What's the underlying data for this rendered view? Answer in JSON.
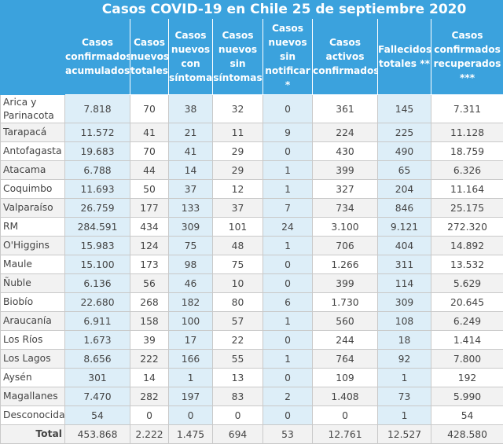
{
  "title": "Casos COVID-19 en Chile 25 de septiembre 2020",
  "headers": [
    "",
    "Casos confirmados acumulados",
    "Casos nuevos totales",
    "Casos nuevos con síntomas",
    "Casos nuevos sin síntomas",
    "Casos nuevos sin notificar *",
    "Casos activos confirmados",
    "Fallecidos totales **",
    "Casos confirmados recuperados ***"
  ],
  "rows": [
    [
      "Arica y Parinacota",
      "7.818",
      "70",
      "38",
      "32",
      "0",
      "361",
      "145",
      "7.311"
    ],
    [
      "Tarapacá",
      "11.572",
      "41",
      "21",
      "11",
      "9",
      "224",
      "225",
      "11.128"
    ],
    [
      "Antofagasta",
      "19.683",
      "70",
      "41",
      "29",
      "0",
      "430",
      "490",
      "18.759"
    ],
    [
      "Atacama",
      "6.788",
      "44",
      "14",
      "29",
      "1",
      "399",
      "65",
      "6.326"
    ],
    [
      "Coquimbo",
      "11.693",
      "50",
      "37",
      "12",
      "1",
      "327",
      "204",
      "11.164"
    ],
    [
      "Valparaíso",
      "26.759",
      "177",
      "133",
      "37",
      "7",
      "734",
      "846",
      "25.175"
    ],
    [
      "RM",
      "284.591",
      "434",
      "309",
      "101",
      "24",
      "3.100",
      "9.121",
      "272.320"
    ],
    [
      "O'Higgins",
      "15.983",
      "124",
      "75",
      "48",
      "1",
      "706",
      "404",
      "14.892"
    ],
    [
      "Maule",
      "15.100",
      "173",
      "98",
      "75",
      "0",
      "1.266",
      "311",
      "13.532"
    ],
    [
      "Ñuble",
      "6.136",
      "56",
      "46",
      "10",
      "0",
      "399",
      "114",
      "5.629"
    ],
    [
      "Biobío",
      "22.680",
      "268",
      "182",
      "80",
      "6",
      "1.730",
      "309",
      "20.645"
    ],
    [
      "Araucanía",
      "6.911",
      "158",
      "100",
      "57",
      "1",
      "560",
      "108",
      "6.249"
    ],
    [
      "Los Ríos",
      "1.673",
      "39",
      "17",
      "22",
      "0",
      "244",
      "18",
      "1.414"
    ],
    [
      "Los Lagos",
      "8.656",
      "222",
      "166",
      "55",
      "1",
      "764",
      "92",
      "7.800"
    ],
    [
      "Aysén",
      "301",
      "14",
      "1",
      "13",
      "0",
      "109",
      "1",
      "192"
    ],
    [
      "Magallanes",
      "7.470",
      "282",
      "197",
      "83",
      "2",
      "1.408",
      "73",
      "5.990"
    ],
    [
      "Desconocida",
      "54",
      "0",
      "0",
      "0",
      "0",
      "0",
      "1",
      "54"
    ]
  ],
  "total": [
    "Total",
    "453.868",
    "2.222",
    "1.475",
    "694",
    "53",
    "12.761",
    "12.527",
    "428.580"
  ]
}
